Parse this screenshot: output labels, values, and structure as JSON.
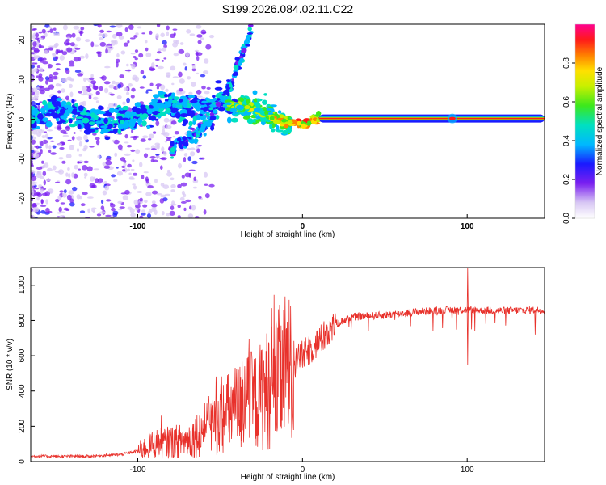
{
  "title": "S199.2026.084.02.11.C22",
  "chart_data": [
    {
      "type": "heatmap",
      "xlabel": "Height of straight line (km)",
      "ylabel": "Frequency (Hz)",
      "xlim": [
        -165,
        147
      ],
      "ylim": [
        -25,
        24
      ],
      "xticks": [
        -100,
        0,
        100
      ],
      "yticks": [
        -20,
        -10,
        0,
        10,
        20
      ],
      "ridge": [
        {
          "x": -160,
          "y": 0.5
        },
        {
          "x": -150,
          "y": 2.5
        },
        {
          "x": -140,
          "y": 1.5
        },
        {
          "x": -130,
          "y": 0.0
        },
        {
          "x": -120,
          "y": -1.0
        },
        {
          "x": -110,
          "y": 0.5
        },
        {
          "x": -100,
          "y": 1.0
        },
        {
          "x": -90,
          "y": 2.0
        },
        {
          "x": -80,
          "y": 4.0
        },
        {
          "x": -70,
          "y": 2.5
        },
        {
          "x": -60,
          "y": 3.5
        },
        {
          "x": -50,
          "y": 5.0
        },
        {
          "x": -42,
          "y": 3.0
        },
        {
          "x": -35,
          "y": 3.0
        },
        {
          "x": -25,
          "y": 2.0
        },
        {
          "x": -15,
          "y": 0.0
        },
        {
          "x": -10,
          "y": -0.5
        },
        {
          "x": -5,
          "y": -1.0
        },
        {
          "x": 0,
          "y": -1.5
        },
        {
          "x": 5,
          "y": -0.5
        },
        {
          "x": 10,
          "y": 0.2
        },
        {
          "x": 147,
          "y": 0.2
        }
      ],
      "branch": [
        {
          "x": -80,
          "y": -8.0
        },
        {
          "x": -65,
          "y": -4.0
        },
        {
          "x": -55,
          "y": 0.0
        },
        {
          "x": -48,
          "y": 6.0
        },
        {
          "x": -42,
          "y": 10.0
        },
        {
          "x": -35,
          "y": 18.0
        },
        {
          "x": -30,
          "y": 24.0
        }
      ],
      "colorbar": {
        "label": "Normalized spectral amplitude",
        "range": [
          0,
          1
        ],
        "ticks": [
          "0.0",
          "0.2",
          "0.4",
          "0.6",
          "0.8"
        ]
      }
    },
    {
      "type": "line",
      "xlabel": "Height of straight line (km)",
      "ylabel": "SNR (10 * v/v)",
      "xlim": [
        -165,
        147
      ],
      "ylim": [
        0,
        1100
      ],
      "xticks": [
        -100,
        0,
        100
      ],
      "yticks": [
        0,
        200,
        400,
        600,
        800,
        1000
      ],
      "color": "#e8312b",
      "trend": [
        {
          "x": -165,
          "y": 30
        },
        {
          "x": -130,
          "y": 30
        },
        {
          "x": -110,
          "y": 40
        },
        {
          "x": -100,
          "y": 60
        },
        {
          "x": -90,
          "y": 100
        },
        {
          "x": -80,
          "y": 110
        },
        {
          "x": -70,
          "y": 120
        },
        {
          "x": -60,
          "y": 180
        },
        {
          "x": -50,
          "y": 250
        },
        {
          "x": -40,
          "y": 300
        },
        {
          "x": -30,
          "y": 350
        },
        {
          "x": -20,
          "y": 420
        },
        {
          "x": -10,
          "y": 520
        },
        {
          "x": 0,
          "y": 600
        },
        {
          "x": 10,
          "y": 680
        },
        {
          "x": 20,
          "y": 780
        },
        {
          "x": 30,
          "y": 820
        },
        {
          "x": 50,
          "y": 830
        },
        {
          "x": 70,
          "y": 850
        },
        {
          "x": 90,
          "y": 860
        },
        {
          "x": 100,
          "y": 860
        },
        {
          "x": 120,
          "y": 855
        },
        {
          "x": 147,
          "y": 860
        }
      ],
      "spikes": [
        {
          "x": -19,
          "y": 870
        },
        {
          "x": 100,
          "y": 1100
        },
        {
          "x": 100,
          "y": 550
        },
        {
          "x": 141,
          "y": 720
        },
        {
          "x": -86,
          "y": 260
        }
      ]
    }
  ]
}
